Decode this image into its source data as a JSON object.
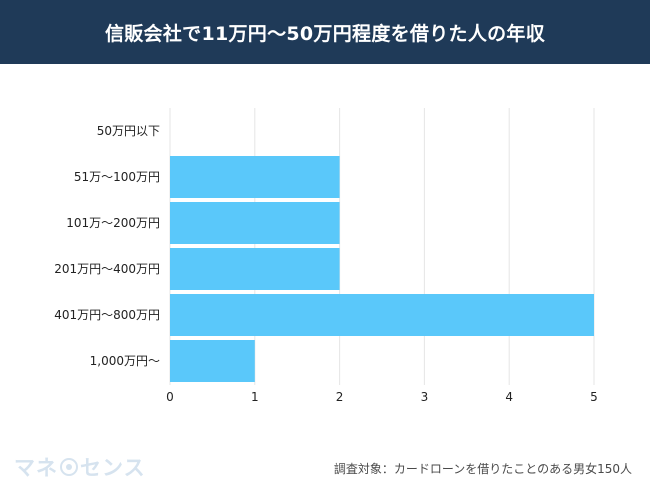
{
  "header": {
    "title": "信販会社で11万円〜50万円程度を借りた人の年収"
  },
  "chart_data": {
    "type": "bar",
    "orientation": "horizontal",
    "title": "信販会社で11万円〜50万円程度を借りた人の年収",
    "categories": [
      "50万円以下",
      "51万〜100万円",
      "101万〜200万円",
      "201万円〜400万円",
      "401万円〜800万円",
      "1,000万円〜"
    ],
    "values": [
      0,
      2,
      2,
      2,
      5,
      1
    ],
    "xlim": [
      0,
      5
    ],
    "xticks": [
      0,
      1,
      2,
      3,
      4,
      5
    ],
    "grid": true,
    "colors": {
      "bar": "#5ac8fa",
      "grid": "#e5e5e5",
      "header": "#1f3a58"
    }
  },
  "logo": {
    "text_left": "マネ",
    "text_right": "センス"
  },
  "footnote": "調査対象：カードローンを借りたことのある男女150人"
}
